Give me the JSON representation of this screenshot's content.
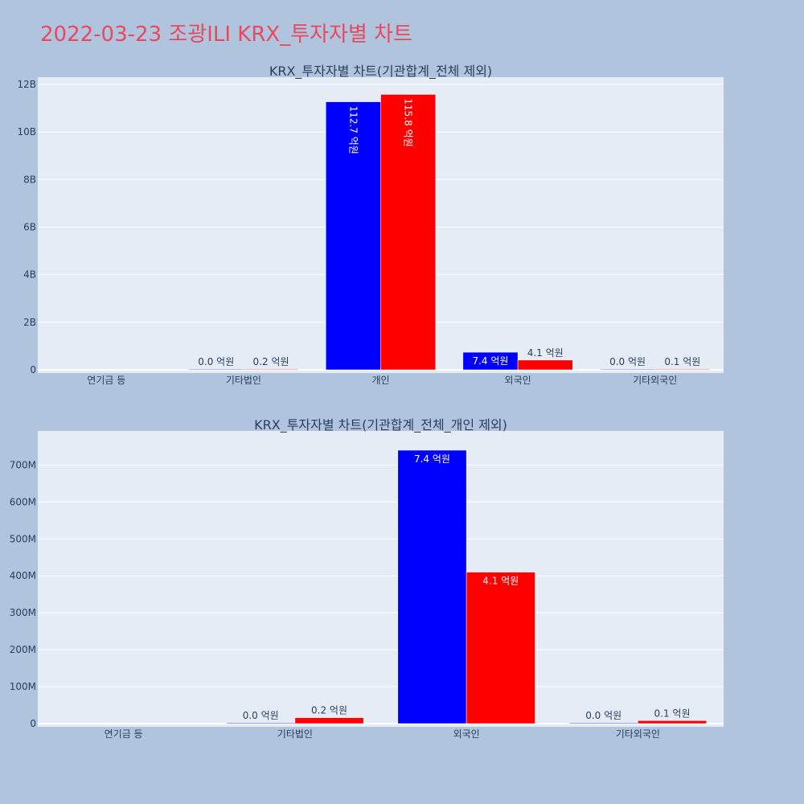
{
  "page_title": "2022-03-23 조광ILI KRX_투자자별 차트",
  "colors": {
    "title": "#e8495f",
    "series_a": "#0000ff",
    "series_b": "#ff0000",
    "plot_bg": "#e5ecf6",
    "paper_bg": "#b0c4de"
  },
  "chart_data": [
    {
      "type": "bar",
      "title": "KRX_투자자별 차트(기관합계_전체 제외)",
      "categories": [
        "연기금 등",
        "기타법인",
        "개인",
        "외국인",
        "기타외국인"
      ],
      "series": [
        {
          "color": "#0000ff",
          "values": [
            0,
            2000000,
            11270000000,
            740000000,
            2000000
          ],
          "labels": [
            "",
            "0.0 억원",
            "112.7 억원",
            "7.4 억원",
            "0.0 억원"
          ]
        },
        {
          "color": "#ff0000",
          "values": [
            0,
            16000000,
            11580000000,
            410000000,
            8000000
          ],
          "labels": [
            "",
            "0.2 억원",
            "115.8 억원",
            "4.1 억원",
            "0.1 억원"
          ]
        }
      ],
      "ylim": [
        0,
        12000000000
      ],
      "yticks": [
        0,
        2000000000,
        4000000000,
        6000000000,
        8000000000,
        10000000000,
        12000000000
      ],
      "yticklabels": [
        "0",
        "2B",
        "4B",
        "6B",
        "8B",
        "10B",
        "12B"
      ],
      "grid": true
    },
    {
      "type": "bar",
      "title": "KRX_투자자별 차트(기관합계_전체_개인 제외)",
      "categories": [
        "연기금 등",
        "기타법인",
        "외국인",
        "기타외국인"
      ],
      "series": [
        {
          "color": "#0000ff",
          "values": [
            0,
            2000000,
            740000000,
            2000000
          ],
          "labels": [
            "",
            "0.0 억원",
            "7.4 억원",
            "0.0 억원"
          ]
        },
        {
          "color": "#ff0000",
          "values": [
            0,
            16000000,
            410000000,
            8000000
          ],
          "labels": [
            "",
            "0.2 억원",
            "4.1 억원",
            "0.1 억원"
          ]
        }
      ],
      "ylim": [
        0,
        790000000
      ],
      "yticks": [
        0,
        100000000,
        200000000,
        300000000,
        400000000,
        500000000,
        600000000,
        700000000
      ],
      "yticklabels": [
        "0",
        "100M",
        "200M",
        "300M",
        "400M",
        "500M",
        "600M",
        "700M"
      ],
      "grid": true
    }
  ]
}
